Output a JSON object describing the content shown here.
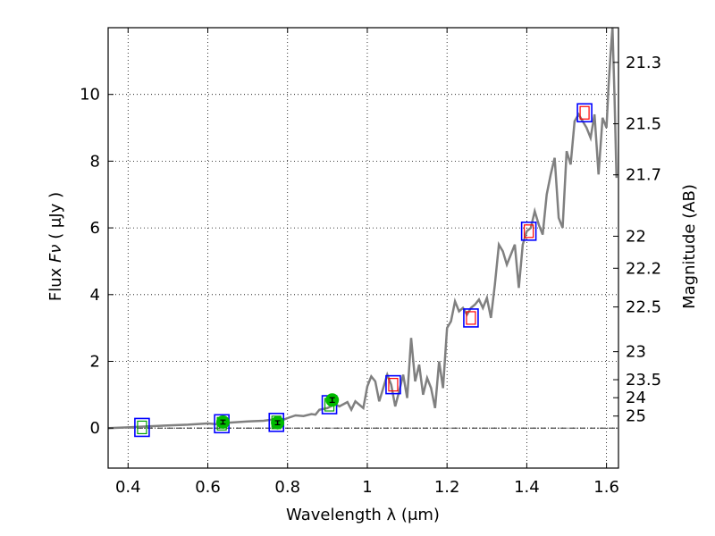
{
  "chart_data": {
    "type": "line",
    "xlabel": "Wavelength  λ (μm)",
    "ylabel_left_prefix": "Flux  ",
    "ylabel_left_symbol": "Fν",
    "ylabel_left_suffix": "  ( μJy )",
    "ylabel_right": "Magnitude (AB)",
    "xlim": [
      0.35,
      1.63
    ],
    "ylim": [
      -1.2,
      12.0
    ],
    "grid": true,
    "x_ticks": [
      0.4,
      0.6,
      0.8,
      1.0,
      1.2,
      1.4,
      1.6
    ],
    "x_tick_labels": [
      "0.4",
      "0.6",
      "0.8",
      "1",
      "1.2",
      "1.4",
      "1.6"
    ],
    "y_ticks": [
      0,
      2,
      4,
      6,
      8,
      10
    ],
    "y_tick_labels": [
      "0",
      "2",
      "4",
      "6",
      "8",
      "10"
    ],
    "mag_ticks": [
      {
        "flux": 10.96,
        "label": "21.3"
      },
      {
        "flux": 9.12,
        "label": "21.5"
      },
      {
        "flux": 7.59,
        "label": "21.7"
      },
      {
        "flux": 5.75,
        "label": "22"
      },
      {
        "flux": 4.79,
        "label": "22.2"
      },
      {
        "flux": 3.63,
        "label": "22.5"
      },
      {
        "flux": 2.29,
        "label": "23"
      },
      {
        "flux": 1.45,
        "label": "23.5"
      },
      {
        "flux": 0.91,
        "label": "24"
      },
      {
        "flux": 0.36,
        "label": "25"
      }
    ],
    "zero_line": 0,
    "colors": {
      "spectrum": "#808080",
      "box_blue": "#0000ff",
      "box_red": "#ff0000",
      "box_green": "#00a000",
      "point_green": "#00bb00",
      "errorbar": "#000000"
    },
    "spectrum": {
      "x": [
        0.35,
        0.4,
        0.45,
        0.5,
        0.55,
        0.6,
        0.62,
        0.65,
        0.7,
        0.74,
        0.76,
        0.78,
        0.8,
        0.82,
        0.84,
        0.86,
        0.87,
        0.88,
        0.9,
        0.92,
        0.93,
        0.95,
        0.96,
        0.97,
        0.98,
        0.99,
        1.0,
        1.01,
        1.02,
        1.03,
        1.04,
        1.05,
        1.06,
        1.07,
        1.08,
        1.09,
        1.1,
        1.11,
        1.12,
        1.13,
        1.14,
        1.15,
        1.16,
        1.17,
        1.18,
        1.19,
        1.2,
        1.21,
        1.22,
        1.23,
        1.24,
        1.25,
        1.26,
        1.27,
        1.28,
        1.29,
        1.3,
        1.31,
        1.32,
        1.33,
        1.34,
        1.35,
        1.36,
        1.37,
        1.38,
        1.39,
        1.4,
        1.41,
        1.42,
        1.43,
        1.44,
        1.45,
        1.46,
        1.47,
        1.48,
        1.49,
        1.5,
        1.51,
        1.52,
        1.53,
        1.54,
        1.55,
        1.56,
        1.57,
        1.58,
        1.59,
        1.6,
        1.605,
        1.61,
        1.615,
        1.62,
        1.625
      ],
      "y": [
        0.0,
        0.02,
        0.05,
        0.08,
        0.1,
        0.14,
        0.12,
        0.16,
        0.2,
        0.22,
        0.25,
        0.2,
        0.3,
        0.38,
        0.36,
        0.42,
        0.4,
        0.55,
        0.6,
        0.72,
        0.65,
        0.78,
        0.55,
        0.8,
        0.7,
        0.6,
        1.25,
        1.55,
        1.4,
        0.8,
        1.2,
        1.6,
        1.3,
        0.65,
        1.1,
        1.6,
        0.9,
        2.7,
        1.4,
        1.9,
        1.0,
        1.5,
        1.2,
        0.6,
        2.0,
        1.2,
        3.0,
        3.2,
        3.8,
        3.5,
        3.6,
        3.4,
        3.6,
        3.7,
        3.85,
        3.6,
        3.9,
        3.3,
        4.3,
        5.5,
        5.3,
        4.9,
        5.2,
        5.5,
        4.2,
        5.5,
        5.9,
        6.0,
        6.5,
        6.1,
        5.8,
        7.0,
        7.6,
        8.1,
        6.3,
        6.0,
        8.3,
        7.9,
        9.2,
        9.4,
        9.2,
        9.0,
        8.7,
        9.4,
        7.6,
        9.3,
        9.0,
        10.2,
        11.2,
        12.0,
        10.0,
        7.5
      ]
    },
    "boxes": [
      {
        "x": 0.435,
        "y": 0.02,
        "inner": "green"
      },
      {
        "x": 0.635,
        "y": 0.13,
        "inner": "green"
      },
      {
        "x": 0.772,
        "y": 0.17,
        "inner": "green"
      },
      {
        "x": 0.905,
        "y": 0.7,
        "inner": "green"
      },
      {
        "x": 1.065,
        "y": 1.3,
        "inner": "red"
      },
      {
        "x": 1.26,
        "y": 3.3,
        "inner": "red"
      },
      {
        "x": 1.405,
        "y": 5.9,
        "inner": "red"
      },
      {
        "x": 1.545,
        "y": 9.45,
        "inner": "red"
      }
    ],
    "points": [
      {
        "x": 0.638,
        "y": 0.18,
        "err": 0.06
      },
      {
        "x": 0.775,
        "y": 0.16,
        "err": 0.06
      },
      {
        "x": 0.912,
        "y": 0.84,
        "err": 0.07
      }
    ]
  }
}
